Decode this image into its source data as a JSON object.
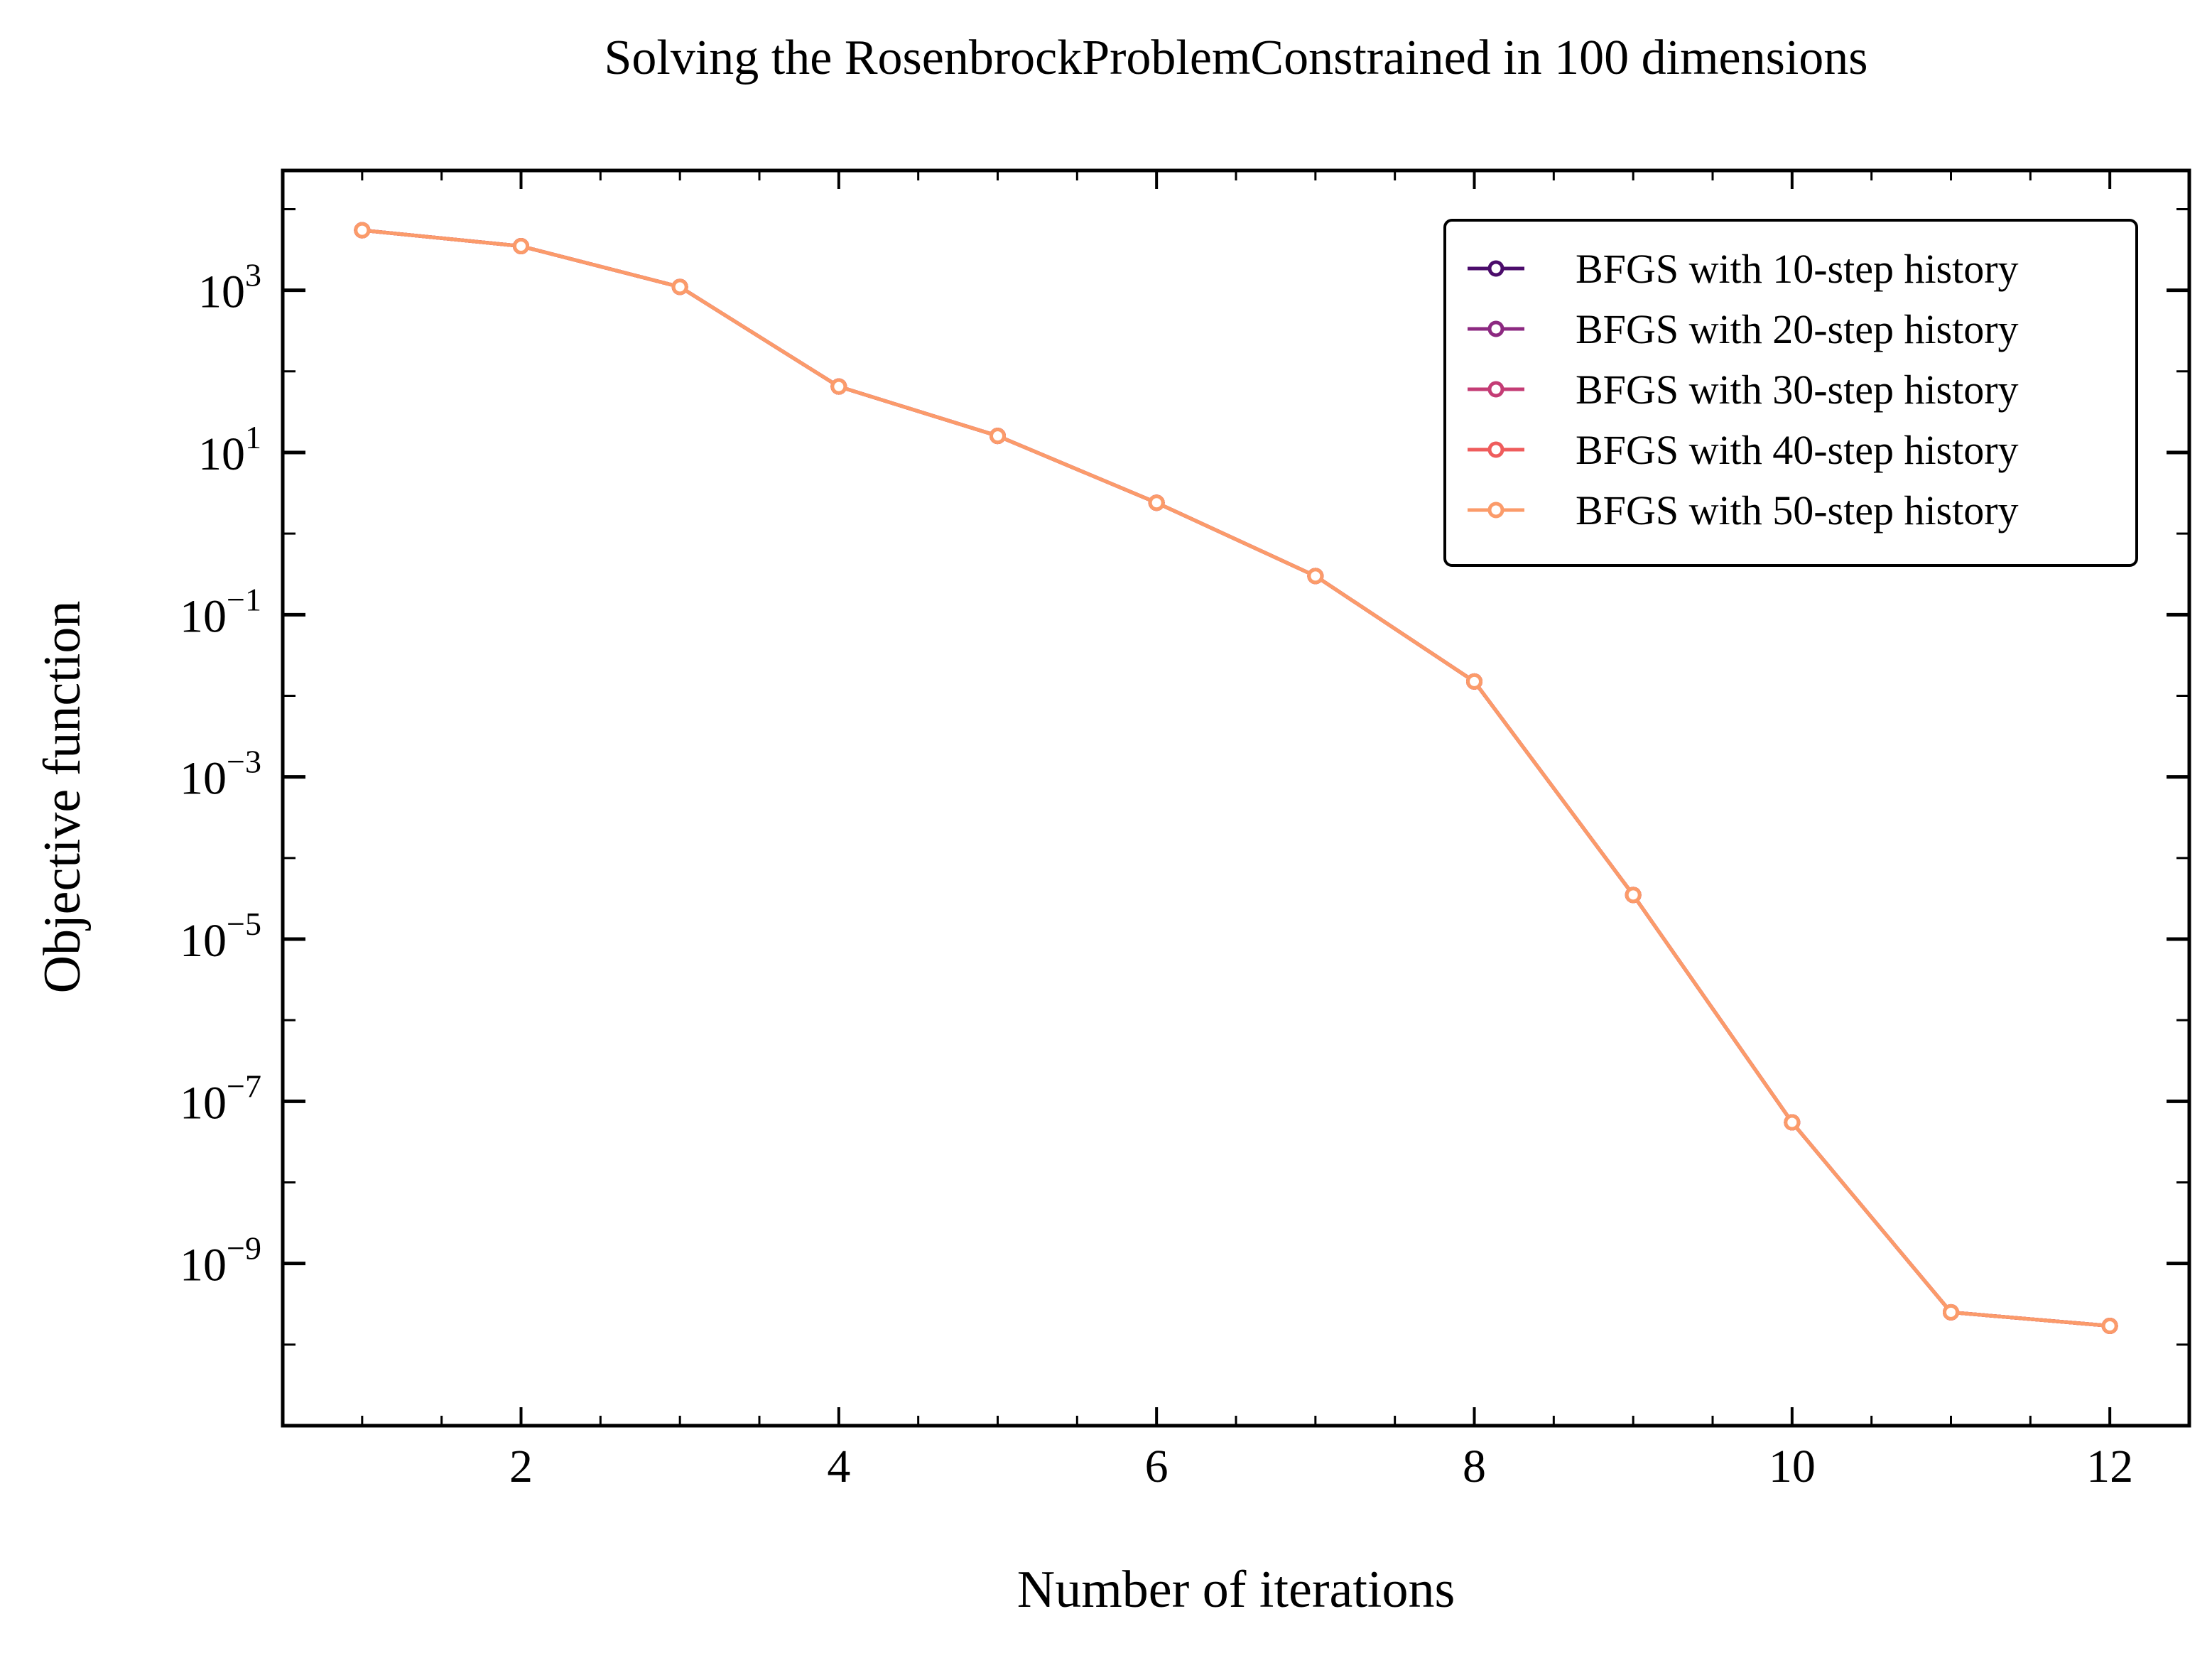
{
  "chart_data": {
    "type": "line",
    "title": "Solving the RosenbrockProblemConstrained in 100 dimensions",
    "xlabel": "Number of iterations",
    "ylabel": "Objective function",
    "xscale": "linear",
    "yscale": "log",
    "xlim": [
      0.5,
      12.5
    ],
    "ylim": [
      1e-11,
      30000.0
    ],
    "xticks": [
      2,
      4,
      6,
      8,
      10,
      12
    ],
    "xtick_labels": [
      "2",
      "4",
      "6",
      "8",
      "10",
      "12"
    ],
    "yticks": [
      {
        "value": 1000.0,
        "base": "10",
        "exp": "3"
      },
      {
        "value": 10.0,
        "base": "10",
        "exp": "1"
      },
      {
        "value": 0.1,
        "base": "10",
        "exp": "−1"
      },
      {
        "value": 0.001,
        "base": "10",
        "exp": "−3"
      },
      {
        "value": 1e-05,
        "base": "10",
        "exp": "−5"
      },
      {
        "value": 1e-07,
        "base": "10",
        "exp": "−7"
      },
      {
        "value": 1e-09,
        "base": "10",
        "exp": "−9"
      }
    ],
    "grid": false,
    "legend_position": "top-right",
    "x": [
      1,
      2,
      3,
      4,
      5,
      6,
      7,
      8,
      9,
      10,
      11,
      12
    ],
    "series": [
      {
        "name": "BFGS with 10-step history",
        "color": "#4b0c6b",
        "values": [
          5500,
          3500,
          1100,
          65,
          16,
          2.4,
          0.3,
          0.015,
          3.5e-05,
          5.5e-08,
          2.5e-10,
          1.7e-10
        ]
      },
      {
        "name": "BFGS with 20-step history",
        "color": "#8c2981",
        "values": [
          5500,
          3500,
          1100,
          65,
          16,
          2.4,
          0.3,
          0.015,
          3.5e-05,
          5.5e-08,
          2.5e-10,
          1.7e-10
        ]
      },
      {
        "name": "BFGS with 30-step history",
        "color": "#c43c75",
        "values": [
          5500,
          3500,
          1100,
          65,
          16,
          2.4,
          0.3,
          0.015,
          3.5e-05,
          5.5e-08,
          2.5e-10,
          1.7e-10
        ]
      },
      {
        "name": "BFGS with 40-step history",
        "color": "#ef5c5c",
        "values": [
          5500,
          3500,
          1100,
          65,
          16,
          2.4,
          0.3,
          0.015,
          3.5e-05,
          5.5e-08,
          2.5e-10,
          1.7e-10
        ]
      },
      {
        "name": "BFGS with 50-step history",
        "color": "#fb9b6a",
        "values": [
          5500,
          3500,
          1100,
          65,
          16,
          2.4,
          0.3,
          0.015,
          3.5e-05,
          5.5e-08,
          2.5e-10,
          1.7e-10
        ]
      }
    ]
  }
}
